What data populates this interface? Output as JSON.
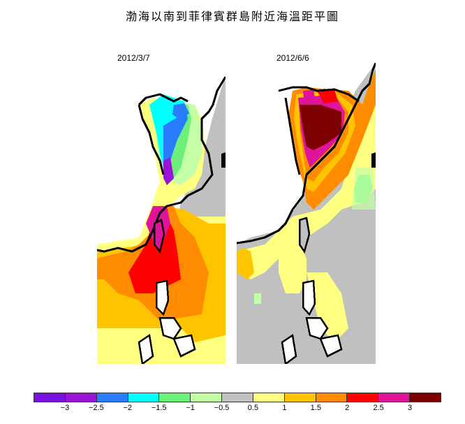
{
  "title": "渤海以南到菲律賓群島附近海溫距平圖",
  "panels": [
    {
      "date": "2012/3/7"
    },
    {
      "date": "2012/6/6"
    }
  ],
  "legend": {
    "colors": [
      "#7a10e0",
      "#9a14d8",
      "#2a7cff",
      "#00ffff",
      "#6df079",
      "#c4ffa8",
      "#c0c0c0",
      "#ffff80",
      "#ffc400",
      "#ff8c00",
      "#ff0000",
      "#e0149a",
      "#7d0000"
    ],
    "labels": [
      "−3",
      "−2.5",
      "−2",
      "−1.5",
      "−1",
      "−0.5",
      "0.5",
      "1",
      "1.5",
      "2",
      "2.5",
      "3"
    ]
  },
  "color_scale": {
    "palette": {
      "land": "#c0c0c0",
      "neutral": "#c0c0c0",
      "pos_0_5": "#ffff80",
      "pos_1": "#ffc400",
      "pos_1_5": "#ff8c00",
      "pos_2": "#ff8c00",
      "pos_2_5": "#ff0000",
      "pos_3": "#e0149a",
      "pos_gt3": "#7d0000",
      "neg_0_5": "#c4ffa8",
      "neg_1": "#6df079",
      "neg_1_5": "#00ffff",
      "neg_2": "#2a7cff",
      "neg_2_5": "#9a14d8"
    }
  }
}
